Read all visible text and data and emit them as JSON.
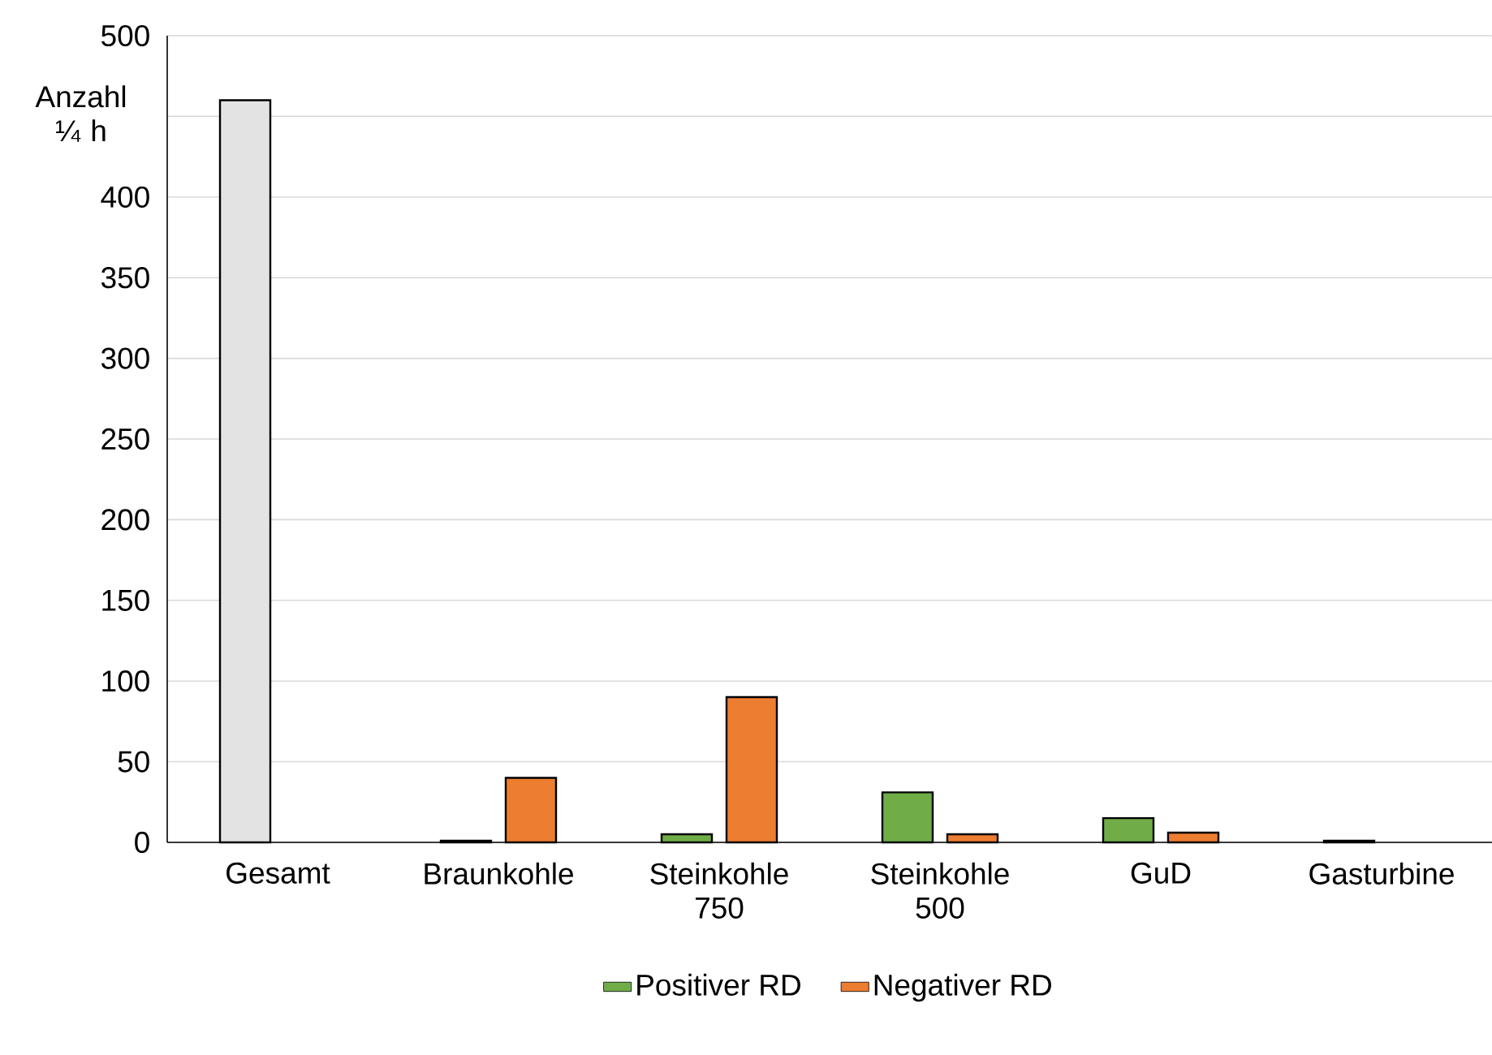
{
  "chart_data": {
    "type": "bar",
    "ylabel": "Anzahl ¼ h",
    "categories": [
      "Gesamt",
      "Braunkohle",
      "Steinkohle 750",
      "Steinkohle 500",
      "GuD",
      "Gasturbine"
    ],
    "series": [
      {
        "name": "Positiver RD",
        "color": "#70ad47",
        "colors": [
          "#e3e3e3",
          "#70ad47",
          "#70ad47",
          "#70ad47",
          "#70ad47",
          "#70ad47"
        ],
        "values": [
          460,
          1,
          5,
          31,
          15,
          1
        ]
      },
      {
        "name": "Negativer RD",
        "color": "#ed7d31",
        "values": [
          null,
          40,
          90,
          5,
          6,
          null
        ]
      }
    ],
    "ylim": [
      0,
      500
    ],
    "yticks": [
      0,
      50,
      100,
      150,
      200,
      250,
      300,
      350,
      400,
      {
        "value": 450,
        "label": null
      },
      500
    ],
    "grid": "y",
    "legend": "bottom"
  }
}
